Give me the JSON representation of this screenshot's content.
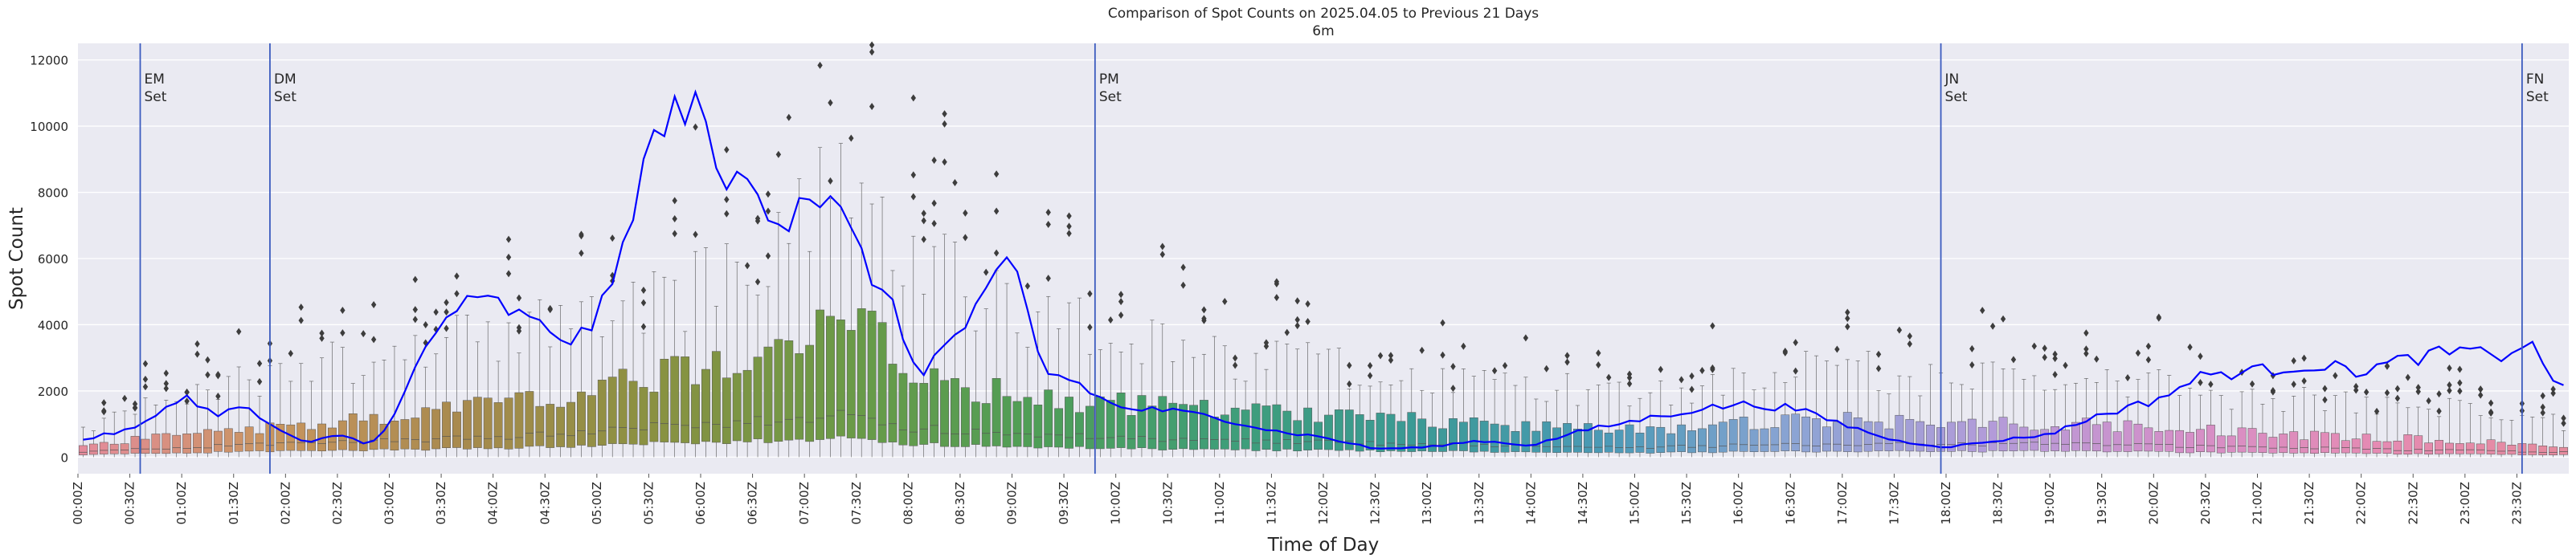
{
  "chart_data": {
    "type": "box",
    "title": "Comparison of Spot Counts on 2025.04.05 to Previous 21 Days",
    "subtitle": "6m",
    "xlabel": "Time of Day",
    "ylabel": "Spot Count",
    "ylim": [
      -500,
      12500
    ],
    "yticks": [
      0,
      2000,
      4000,
      6000,
      8000,
      10000,
      12000
    ],
    "bins_per_day": 240,
    "bin_minutes": 6,
    "xtick_labels": [
      "00:00Z",
      "00:30Z",
      "01:00Z",
      "01:30Z",
      "02:00Z",
      "02:30Z",
      "03:00Z",
      "03:30Z",
      "04:00Z",
      "04:30Z",
      "05:00Z",
      "05:30Z",
      "06:00Z",
      "06:30Z",
      "07:00Z",
      "07:30Z",
      "08:00Z",
      "08:30Z",
      "09:00Z",
      "09:30Z",
      "10:00Z",
      "10:30Z",
      "11:00Z",
      "11:30Z",
      "12:00Z",
      "12:30Z",
      "13:00Z",
      "13:30Z",
      "14:00Z",
      "14:30Z",
      "15:00Z",
      "15:30Z",
      "16:00Z",
      "16:30Z",
      "17:00Z",
      "17:30Z",
      "18:00Z",
      "18:30Z",
      "19:00Z",
      "19:30Z",
      "20:00Z",
      "20:30Z",
      "21:00Z",
      "21:30Z",
      "22:00Z",
      "22:30Z",
      "23:00Z",
      "23:30Z"
    ],
    "box_profile_hours": [
      0,
      1,
      2,
      3,
      4,
      5,
      6,
      7,
      7.5,
      8,
      9,
      10,
      11,
      12,
      13,
      14,
      15,
      16,
      17,
      18,
      19,
      20,
      21,
      22,
      23,
      24
    ],
    "box_q3_profile": [
      300,
      700,
      900,
      1200,
      1500,
      2000,
      2600,
      3800,
      4000,
      2600,
      1800,
      1600,
      1400,
      1300,
      1100,
      900,
      800,
      1000,
      1100,
      1000,
      1000,
      900,
      700,
      600,
      500,
      350
    ],
    "box_median_profile": [
      150,
      300,
      400,
      500,
      600,
      800,
      1000,
      1200,
      1300,
      900,
      700,
      600,
      500,
      450,
      400,
      350,
      300,
      350,
      400,
      400,
      400,
      350,
      300,
      250,
      200,
      150
    ],
    "box_whisker_profile": [
      800,
      1800,
      2500,
      3200,
      3600,
      4700,
      5000,
      7000,
      9000,
      6000,
      4500,
      3500,
      3000,
      2800,
      2500,
      2200,
      1800,
      2200,
      2800,
      2200,
      2600,
      2200,
      1800,
      1600,
      1400,
      1000
    ],
    "current_day_series_name": "2025.04.05",
    "current_day_hours": [
      0,
      0.3,
      0.6,
      1.0,
      1.3,
      1.6,
      1.8,
      2.0,
      2.2,
      2.5,
      2.8,
      3.0,
      3.3,
      3.6,
      4.0,
      4.4,
      4.8,
      5.0,
      5.2,
      5.4,
      5.6,
      5.8,
      5.95,
      6.1,
      6.3,
      6.5,
      6.8,
      7.0,
      7.3,
      7.5,
      7.8,
      8.1,
      8.5,
      8.8,
      9.0,
      9.3,
      9.6,
      10.0,
      10.5,
      11.0,
      11.5,
      12.0,
      12.5,
      13.0,
      13.5,
      14.0,
      14.5,
      15.0,
      15.5,
      16.0,
      16.5,
      17.0,
      17.5,
      18.0,
      18.5,
      19.0,
      19.5,
      20.0,
      20.5,
      21.0,
      21.5,
      22.0,
      22.5,
      23.0,
      23.3,
      23.6,
      24.0
    ],
    "current_day_values": [
      500,
      700,
      900,
      1900,
      1300,
      1500,
      1100,
      700,
      400,
      700,
      400,
      900,
      3000,
      4500,
      4700,
      4000,
      3500,
      4200,
      5500,
      8500,
      9700,
      10500,
      11400,
      8500,
      8200,
      8500,
      7000,
      8200,
      7500,
      6300,
      4800,
      2500,
      3800,
      5000,
      6000,
      2600,
      2300,
      1500,
      1400,
      1200,
      800,
      600,
      250,
      300,
      500,
      350,
      800,
      1100,
      1400,
      1600,
      1500,
      1000,
      500,
      300,
      500,
      700,
      1300,
      1700,
      2500,
      2600,
      2800,
      2600,
      3000,
      3200,
      3000,
      3500,
      1800
    ],
    "markers": [
      {
        "hour": 0.6,
        "label_line1": "EM",
        "label_line2": "Set"
      },
      {
        "hour": 1.85,
        "label_line1": "DM",
        "label_line2": "Set"
      },
      {
        "hour": 9.8,
        "label_line1": "PM",
        "label_line2": "Set"
      },
      {
        "hour": 17.95,
        "label_line1": "JN",
        "label_line2": "Set"
      },
      {
        "hour": 23.55,
        "label_line1": "FN",
        "label_line2": "Set"
      }
    ],
    "colors": {
      "background": "#eaeaf2",
      "grid": "#ffffff",
      "current_day_line": "#0000ff",
      "marker_line": "#3b5bbf",
      "outlier": "#3d3d3d",
      "box_edge": "#555555",
      "palette_stops": [
        "#e58b9d",
        "#c8955f",
        "#a88a4e",
        "#8a9141",
        "#6b9a47",
        "#4f9e57",
        "#3f9e79",
        "#3b9a96",
        "#4c9ab7",
        "#8ea4d5",
        "#b39bd9",
        "#d58fc8",
        "#e58bb3",
        "#e58b9d"
      ]
    }
  }
}
